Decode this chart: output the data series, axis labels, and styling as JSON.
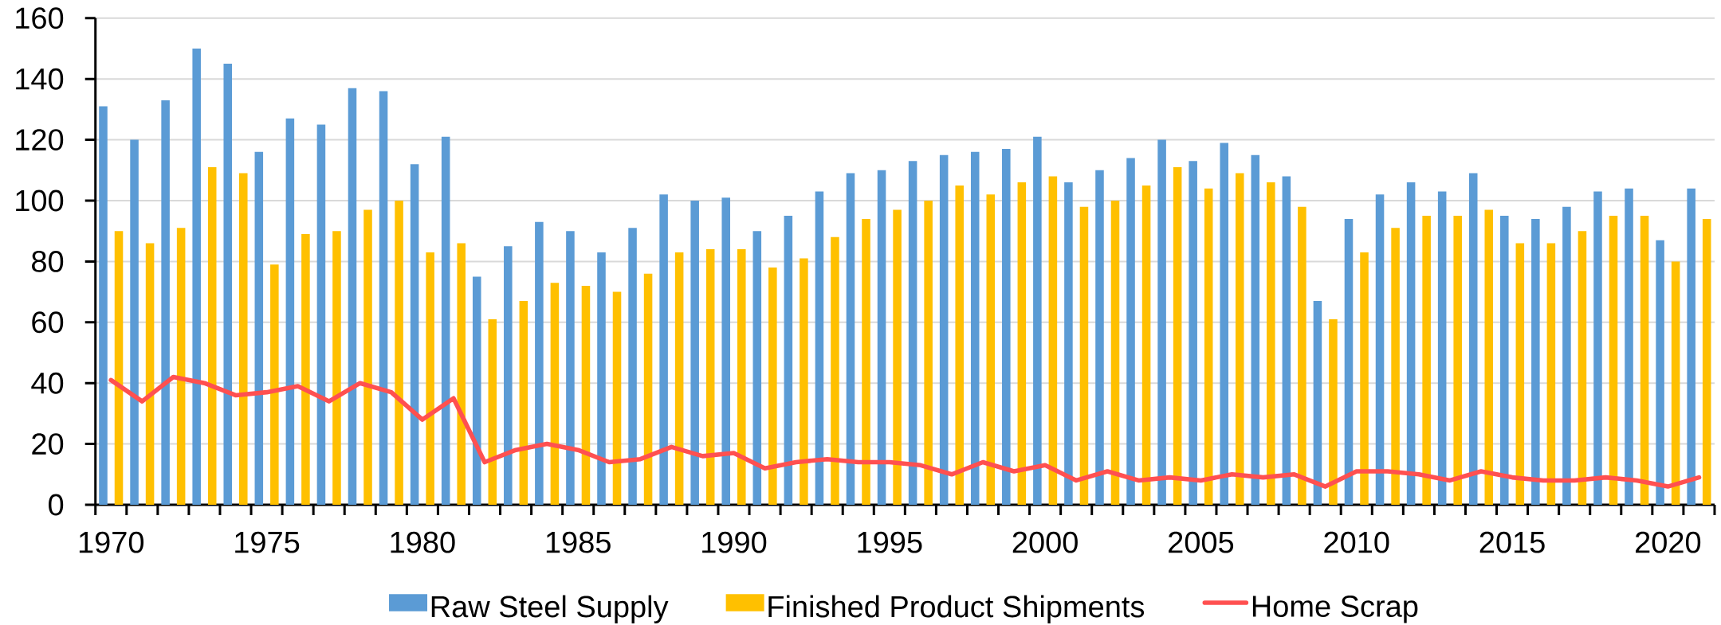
{
  "chart_data": {
    "type": "bar",
    "categories": [
      "1970",
      null,
      null,
      null,
      null,
      "1975",
      null,
      null,
      null,
      null,
      "1980",
      null,
      null,
      null,
      null,
      "1985",
      null,
      null,
      null,
      null,
      "1990",
      null,
      null,
      null,
      null,
      "1995",
      null,
      null,
      null,
      null,
      "2000",
      null,
      null,
      null,
      null,
      "2005",
      null,
      null,
      null,
      null,
      "2010",
      null,
      null,
      null,
      null,
      "2015",
      null,
      null,
      null,
      null,
      "2020",
      null
    ],
    "ylim": [
      0,
      160
    ],
    "yticks": [
      0,
      20,
      40,
      60,
      80,
      100,
      120,
      140,
      160
    ],
    "grid": "y",
    "legend": "bottom",
    "series": [
      {
        "name": "Raw Steel Supply",
        "color": "#5b9bd5",
        "values": [
          131,
          120,
          133,
          150,
          145,
          116,
          127,
          125,
          137,
          136,
          112,
          121,
          75,
          85,
          93,
          90,
          83,
          91,
          102,
          100,
          101,
          90,
          95,
          103,
          109,
          110,
          113,
          115,
          116,
          117,
          121,
          106,
          110,
          114,
          120,
          113,
          119,
          115,
          108,
          67,
          94,
          102,
          106,
          103,
          109,
          95,
          94,
          98,
          103,
          104,
          87,
          104
        ]
      },
      {
        "name": "Finished Product Shipments",
        "color": "#ffc000",
        "values": [
          90,
          86,
          91,
          111,
          109,
          79,
          89,
          90,
          97,
          100,
          83,
          86,
          61,
          67,
          73,
          72,
          70,
          76,
          83,
          84,
          84,
          78,
          81,
          88,
          94,
          97,
          100,
          105,
          102,
          106,
          108,
          98,
          100,
          105,
          111,
          104,
          109,
          106,
          98,
          61,
          83,
          91,
          95,
          95,
          97,
          86,
          86,
          90,
          95,
          95,
          80,
          94
        ]
      },
      {
        "name": "Home Scrap",
        "type": "line",
        "color": "#ff5050",
        "values": [
          41,
          34,
          42,
          40,
          36,
          37,
          39,
          34,
          40,
          37,
          28,
          35,
          14,
          18,
          20,
          18,
          14,
          15,
          19,
          16,
          17,
          12,
          14,
          15,
          14,
          14,
          13,
          10,
          14,
          11,
          13,
          8,
          11,
          8,
          9,
          8,
          10,
          9,
          10,
          6,
          11,
          11,
          10,
          8,
          11,
          9,
          8,
          8,
          9,
          8,
          6,
          9
        ]
      }
    ]
  }
}
